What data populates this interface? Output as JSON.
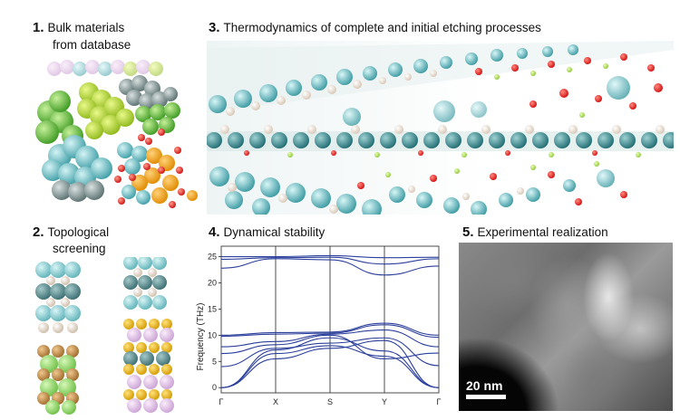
{
  "panels": {
    "p1": {
      "num": "1.",
      "line1": "Bulk materials",
      "line2": "from database"
    },
    "p2": {
      "num": "2.",
      "line1": "Topological",
      "line2": "screening"
    },
    "p3": {
      "num": "3.",
      "line1": "Thermodynamics of complete and initial etching processes"
    },
    "p4": {
      "num": "4.",
      "line1": "Dynamical stability"
    },
    "p5": {
      "num": "5.",
      "line1": "Experimental realization",
      "scale_label": "20 nm"
    }
  },
  "chart_data": {
    "type": "line",
    "ylabel": "Frequency (THz)",
    "x_ticks": [
      "Γ",
      "X",
      "S",
      "Y",
      "Γ"
    ],
    "ylim": [
      -1,
      27
    ],
    "y_ticks": [
      0,
      5,
      10,
      15,
      20,
      25
    ],
    "series": [
      {
        "values": [
          0,
          5.5,
          7.5,
          9.0,
          0
        ]
      },
      {
        "values": [
          0,
          6.5,
          8.0,
          6.0,
          0
        ]
      },
      {
        "values": [
          0,
          7.2,
          9.5,
          7.0,
          0
        ]
      },
      {
        "values": [
          4.0,
          7.5,
          8.5,
          9.5,
          4.2
        ]
      },
      {
        "values": [
          6.5,
          8.2,
          10.0,
          5.5,
          6.6
        ]
      },
      {
        "values": [
          7.8,
          8.8,
          10.2,
          11.0,
          7.8
        ]
      },
      {
        "values": [
          9.8,
          10.2,
          10.4,
          12.0,
          9.6
        ]
      },
      {
        "values": [
          10.0,
          10.5,
          10.6,
          12.3,
          10.0
        ]
      },
      {
        "values": [
          22.8,
          24.6,
          24.4,
          21.5,
          23.2
        ]
      },
      {
        "values": [
          24.5,
          24.8,
          24.9,
          23.6,
          24.6
        ]
      },
      {
        "values": [
          25.0,
          25.0,
          25.2,
          24.8,
          24.9
        ]
      }
    ],
    "color": "#2b3f9b"
  }
}
